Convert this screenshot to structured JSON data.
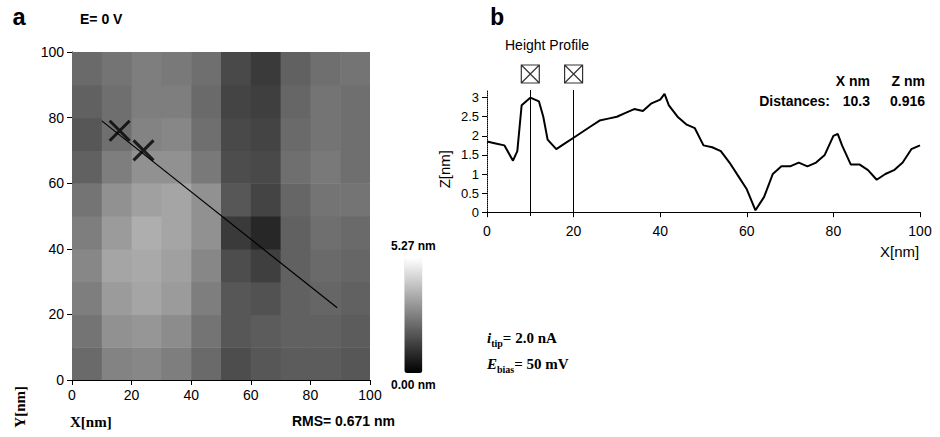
{
  "chart_data": [
    {
      "type": "heatmap",
      "panel": "a",
      "title": "E= 0 V",
      "x_label": "X[nm]",
      "y_label": "Y[nm]",
      "annotation": "RMS= 0.671 nm",
      "xlim": [
        0,
        100
      ],
      "xticks": [
        0,
        20,
        40,
        60,
        80,
        100
      ],
      "ylim": [
        0,
        100
      ],
      "yticks": [
        0,
        20,
        40,
        60,
        80,
        100
      ],
      "cells": {
        "x": [
          5,
          15,
          25,
          35,
          45,
          55,
          65,
          75,
          85,
          95
        ],
        "y": [
          5,
          15,
          25,
          35,
          45,
          55,
          65,
          75,
          85,
          95
        ],
        "z": [
          [
            2.2,
            2.7,
            2.8,
            2.6,
            2.2,
            1.6,
            1.8,
            1.9,
            1.9,
            1.8
          ],
          [
            2.4,
            3.0,
            3.1,
            2.9,
            2.4,
            1.8,
            1.9,
            2.0,
            2.0,
            1.9
          ],
          [
            2.6,
            3.2,
            3.4,
            3.2,
            2.6,
            1.8,
            1.7,
            2.0,
            2.1,
            2.0
          ],
          [
            2.8,
            3.4,
            3.5,
            3.3,
            2.8,
            1.6,
            1.3,
            2.0,
            2.2,
            2.1
          ],
          [
            2.6,
            3.2,
            3.6,
            3.4,
            3.0,
            1.2,
            0.8,
            2.0,
            2.3,
            2.2
          ],
          [
            2.4,
            3.0,
            3.3,
            3.4,
            3.0,
            1.8,
            1.4,
            2.1,
            2.4,
            2.4
          ],
          [
            2.0,
            2.6,
            3.0,
            3.0,
            2.5,
            1.6,
            1.5,
            2.3,
            2.5,
            2.3
          ],
          [
            1.8,
            2.3,
            2.7,
            2.8,
            2.3,
            1.5,
            1.4,
            2.2,
            2.4,
            2.3
          ],
          [
            2.0,
            2.3,
            2.6,
            2.6,
            2.2,
            1.4,
            1.3,
            2.1,
            2.4,
            2.3
          ],
          [
            2.2,
            2.4,
            2.6,
            2.5,
            2.3,
            1.5,
            1.2,
            2.0,
            2.3,
            2.4
          ]
        ]
      },
      "colorbar": {
        "range": [
          0,
          5.27
        ],
        "ticks": [
          {
            "value": 0,
            "label": "0.00 nm"
          },
          {
            "value": 5.27,
            "label": "5.27 nm"
          }
        ],
        "colors": [
          "#000000",
          "#ffffff"
        ]
      },
      "profile_line": {
        "x": [
          10,
          89
        ],
        "y": [
          79,
          22
        ],
        "color": "#000000"
      },
      "cursors": {
        "x": [
          16,
          24
        ],
        "y": [
          76,
          70
        ],
        "marker": "x",
        "color": "#000000"
      }
    },
    {
      "type": "line",
      "panel": "b",
      "title": "Height Profile",
      "x_label": "X[nm]",
      "y_label": "Z[nm]",
      "x": [
        0,
        2,
        4,
        6,
        7,
        8,
        10,
        12,
        13,
        14,
        16,
        18,
        20,
        22,
        24,
        26,
        28,
        30,
        32,
        34,
        36,
        38,
        40,
        41,
        42,
        44,
        46,
        48,
        50,
        52,
        54,
        56,
        58,
        60,
        62,
        64,
        66,
        68,
        70,
        72,
        74,
        76,
        78,
        80,
        81,
        82,
        84,
        86,
        88,
        90,
        92,
        94,
        96,
        98,
        100
      ],
      "values": [
        1.85,
        1.8,
        1.75,
        1.35,
        1.6,
        2.8,
        3.0,
        2.9,
        2.5,
        1.9,
        1.65,
        1.8,
        1.95,
        2.1,
        2.25,
        2.4,
        2.45,
        2.5,
        2.6,
        2.7,
        2.65,
        2.85,
        2.95,
        3.1,
        2.8,
        2.5,
        2.3,
        2.2,
        1.75,
        1.7,
        1.6,
        1.3,
        0.95,
        0.6,
        0.05,
        0.4,
        1.0,
        1.2,
        1.2,
        1.3,
        1.2,
        1.3,
        1.5,
        2.0,
        2.05,
        1.75,
        1.25,
        1.25,
        1.1,
        0.85,
        1.0,
        1.1,
        1.3,
        1.65,
        1.75
      ],
      "color": "#000000",
      "xlim": [
        0,
        100
      ],
      "xticks": [
        0,
        20,
        40,
        60,
        80,
        100
      ],
      "ylim": [
        -0.1,
        3.2
      ],
      "yticks": [
        0,
        0.5,
        1,
        1.5,
        2,
        2.5,
        3
      ],
      "cursors": [
        10,
        20
      ],
      "baseline": 0,
      "readout": {
        "columns": [
          "X nm",
          "Z nm"
        ],
        "label": "Distances:",
        "values": [
          10.3,
          0.916
        ]
      },
      "annotations": [
        {
          "symbol": "i",
          "subscript": "tip",
          "text": "= 2.0 nA"
        },
        {
          "symbol": "E",
          "subscript": "bias",
          "text": "= 50 mV"
        }
      ]
    }
  ]
}
